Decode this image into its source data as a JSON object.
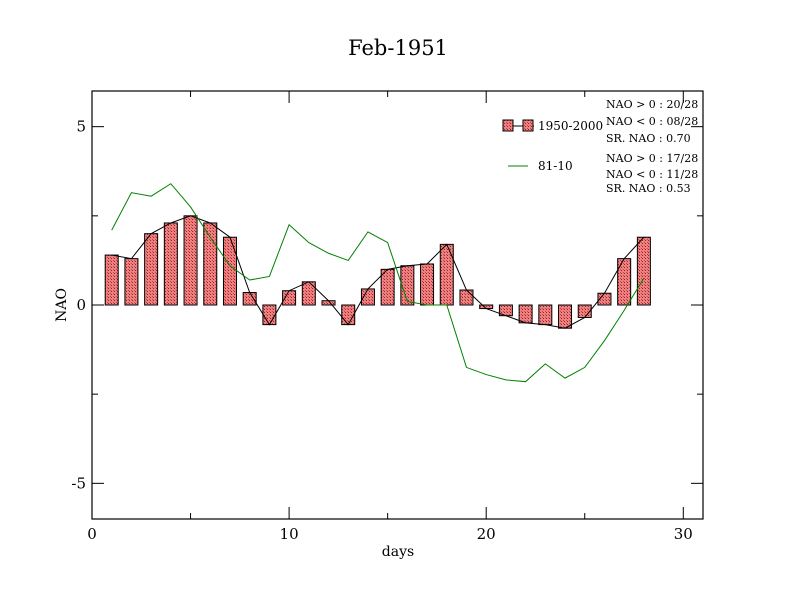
{
  "chart_data": {
    "type": "bar",
    "title": "Feb-1951",
    "xlabel": "days",
    "ylabel": "NAO",
    "xlim": [
      0,
      31
    ],
    "ylim": [
      -6,
      6
    ],
    "xticks": [
      0,
      10,
      20,
      30
    ],
    "yticks": [
      -5,
      0,
      5
    ],
    "x": [
      1,
      2,
      3,
      4,
      5,
      6,
      7,
      8,
      9,
      10,
      11,
      12,
      13,
      14,
      15,
      16,
      17,
      18,
      19,
      20,
      21,
      22,
      23,
      24,
      25,
      26,
      27,
      28
    ],
    "series": [
      {
        "name": "1950-2000",
        "kind": "bar",
        "color": "#f08080",
        "line_color": "#000000",
        "values": [
          1.4,
          1.3,
          2.0,
          2.3,
          2.5,
          2.3,
          1.9,
          0.35,
          -0.55,
          0.4,
          0.65,
          0.12,
          -0.55,
          0.45,
          1.0,
          1.1,
          1.15,
          1.7,
          0.42,
          -0.1,
          -0.3,
          -0.5,
          -0.55,
          -0.65,
          -0.35,
          0.33,
          1.3,
          1.9
        ]
      },
      {
        "name": "81-10",
        "kind": "line",
        "color": "#008000",
        "values": [
          2.1,
          3.15,
          3.05,
          3.4,
          2.75,
          1.9,
          1.1,
          0.7,
          0.8,
          2.25,
          1.75,
          1.45,
          1.25,
          2.05,
          1.75,
          0.1,
          0.0,
          0.0,
          -1.75,
          -1.95,
          -2.1,
          -2.15,
          -1.65,
          -2.05,
          -1.75,
          -1.0,
          -0.15,
          0.75
        ]
      }
    ],
    "stats": {
      "group1": [
        "NAO > 0 : 20/28",
        "NAO < 0 : 08/28",
        "SR. NAO :  0.70"
      ],
      "group2": [
        "NAO > 0 : 17/28",
        "NAO < 0 : 11/28",
        "SR. NAO :  0.53"
      ]
    },
    "grid": false,
    "legend_placement": "top-right"
  }
}
